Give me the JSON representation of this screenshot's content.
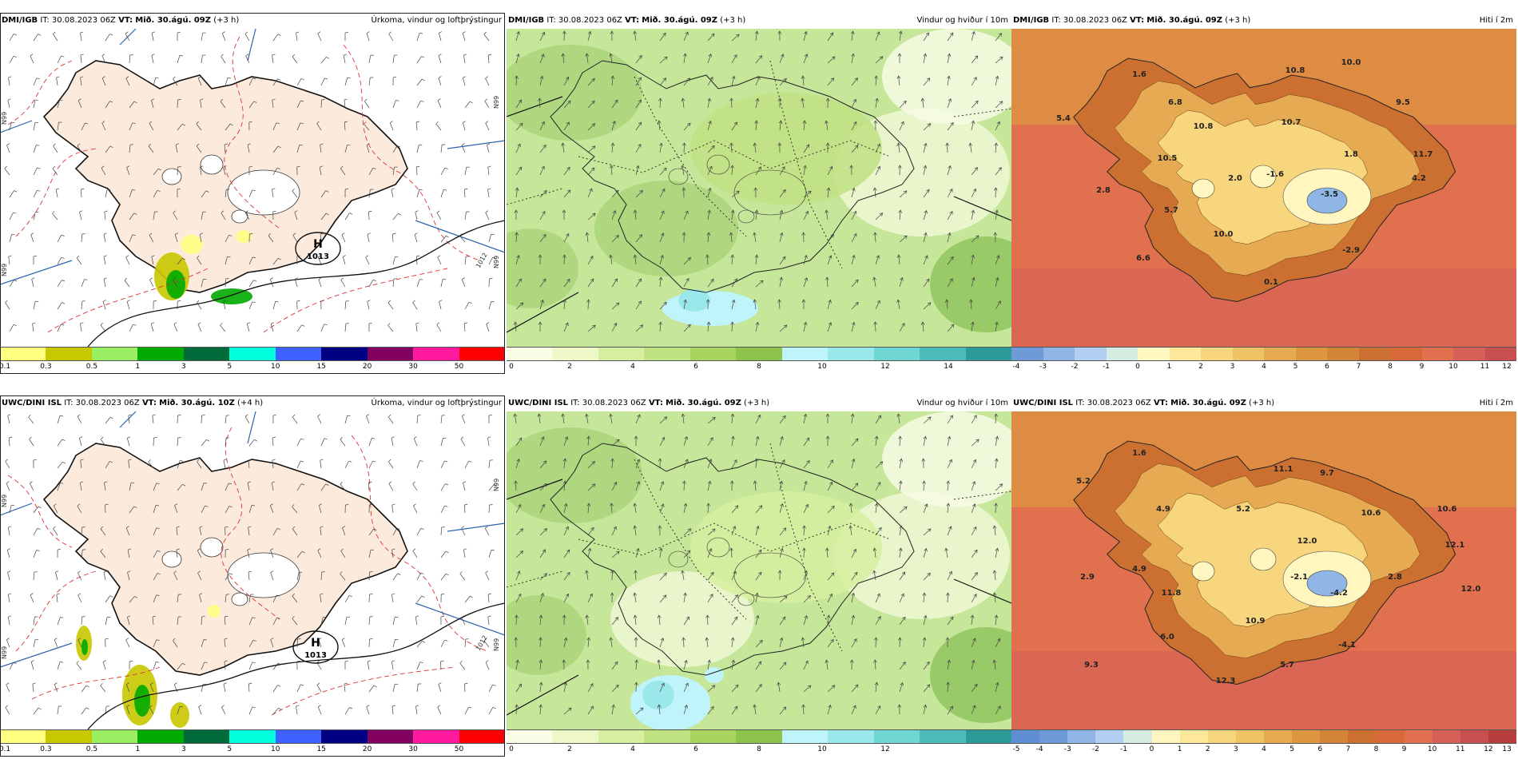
{
  "rows": [
    {
      "panels": [
        {
          "kind": "precip",
          "model": "DMI/IGB",
          "it_label": "IT:",
          "it_value": "30.08.2023 06Z",
          "vt_label": "VT:",
          "vt_value": "Mið. 30.ágú. 09Z",
          "lead": "(+3 h)",
          "product": "Úrkoma, vindur og loftþrýstingur",
          "pressure_high": {
            "symbol": "H",
            "value": "1013"
          },
          "isobar_label": "1012",
          "edge_labels": [
            "N99",
            "N99",
            "N99",
            "N99"
          ],
          "point_labels": [],
          "colorbar": {
            "colors": [
              "#ffff80",
              "#c8c800",
              "#9aee62",
              "#00aa00",
              "#006a3a",
              "#00ffdd",
              "#3d62ff",
              "#000082",
              "#820060",
              "#ff1aa0",
              "#ff0000"
            ],
            "ticks": [
              "0.1",
              "0.3",
              "0.5",
              "1",
              "3",
              "5",
              "10",
              "15",
              "20",
              "30",
              "50"
            ]
          }
        },
        {
          "kind": "wind",
          "model": "DMI/IGB",
          "it_label": "IT:",
          "it_value": "30.08.2023 06Z",
          "vt_label": "VT:",
          "vt_value": "Mið. 30.ágú. 09Z",
          "lead": "(+3 h)",
          "product": "Vindur og hviður í 10m",
          "point_labels": [],
          "colorbar": {
            "colors": [
              "#fbfde6",
              "#edf7c8",
              "#d6eea0",
              "#bfe380",
              "#a8d55e",
              "#8dc34a",
              "#bff4fb",
              "#9be8ea",
              "#70d6d3",
              "#4cbcba",
              "#2e9a97"
            ],
            "ticks": [
              "0",
              "2",
              "4",
              "6",
              "8",
              "10",
              "12",
              "14"
            ]
          }
        },
        {
          "kind": "temp",
          "model": "DMI/IGB",
          "it_label": "IT:",
          "it_value": "30.08.2023 06Z",
          "vt_label": "VT:",
          "vt_value": "Mið. 30.ágú. 09Z",
          "lead": "(+3 h)",
          "product": "Hiti í 2m",
          "point_labels": [
            "1.6",
            "10.8",
            "10.0",
            "5.4",
            "6.8",
            "9.5",
            "10.8",
            "10.7",
            "11.7",
            "10.5",
            "1.8",
            "2.8",
            "2.0",
            "-1.6",
            "4.2",
            "-3.5",
            "5.7",
            "10.0",
            "-2.9",
            "6.6",
            "0.1"
          ],
          "colorbar": {
            "colors": [
              "#6e9bd8",
              "#8fb6e6",
              "#b2cef0",
              "#d5ece0",
              "#fff6c0",
              "#fde89a",
              "#f8d67e",
              "#f0c266",
              "#e6ab52",
              "#dd9640",
              "#d48436",
              "#cc7032",
              "#d86a3a",
              "#e0704e",
              "#d66058",
              "#c84f4f"
            ],
            "ticks": [
              "-4",
              "-3",
              "-2",
              "-1",
              "0",
              "1",
              "2",
              "3",
              "4",
              "5",
              "6",
              "7",
              "8",
              "9",
              "10",
              "11",
              "12"
            ]
          }
        }
      ]
    },
    {
      "panels": [
        {
          "kind": "precip",
          "model": "UWC/DINI ISL",
          "it_label": "IT:",
          "it_value": "30.08.2023 06Z",
          "vt_label": "VT:",
          "vt_value": "Mið. 30.ágú. 10Z",
          "lead": "(+4 h)",
          "product": "Úrkoma, vindur og loftþrýstingur",
          "pressure_high": {
            "symbol": "H",
            "value": "1013"
          },
          "isobar_label": "1012",
          "edge_labels": [
            "N99",
            "N99",
            "N99",
            "N99"
          ],
          "point_labels": [],
          "colorbar": {
            "colors": [
              "#ffff80",
              "#c8c800",
              "#9aee62",
              "#00aa00",
              "#006a3a",
              "#00ffdd",
              "#3d62ff",
              "#000082",
              "#820060",
              "#ff1aa0",
              "#ff0000"
            ],
            "ticks": [
              "0.1",
              "0.3",
              "0.5",
              "1",
              "3",
              "5",
              "10",
              "15",
              "20",
              "30",
              "50"
            ]
          }
        },
        {
          "kind": "wind",
          "model": "UWC/DINI ISL",
          "it_label": "IT:",
          "it_value": "30.08.2023 06Z",
          "vt_label": "VT:",
          "vt_value": "Mið. 30.ágú. 09Z",
          "lead": "(+3 h)",
          "product": "Vindur og hviður í 10m",
          "point_labels": [],
          "colorbar": {
            "colors": [
              "#fbfde6",
              "#edf7c8",
              "#d6eea0",
              "#bfe380",
              "#a8d55e",
              "#8dc34a",
              "#bff4fb",
              "#9be8ea",
              "#70d6d3",
              "#4cbcba",
              "#2e9a97"
            ],
            "ticks": [
              "0",
              "2",
              "4",
              "6",
              "8",
              "10",
              "12"
            ]
          }
        },
        {
          "kind": "temp",
          "model": "UWC/DINI ISL",
          "it_label": "IT:",
          "it_value": "30.08.2023 06Z",
          "vt_label": "VT:",
          "vt_value": "Mið. 30.ágú. 09Z",
          "lead": "(+3 h)",
          "product": "Hiti í 2m",
          "point_labels": [
            "1.6",
            "5.2",
            "11.1",
            "9.7",
            "4.9",
            "5.2",
            "10.6",
            "10.6",
            "12.0",
            "12.1",
            "4.9",
            "2.9",
            "-2.1",
            "2.8",
            "11.8",
            "-4.2",
            "12.0",
            "10.9",
            "6.0",
            "-4.1",
            "9.3",
            "5.7",
            "12.3"
          ],
          "colorbar": {
            "colors": [
              "#5f8fd2",
              "#6e9bd8",
              "#8fb6e6",
              "#b2cef0",
              "#d5ece0",
              "#fff6c0",
              "#fde89a",
              "#f8d67e",
              "#f0c266",
              "#e6ab52",
              "#dd9640",
              "#d48436",
              "#cc7032",
              "#d86a3a",
              "#e0704e",
              "#d66058",
              "#c84f4f",
              "#b83e3e"
            ],
            "ticks": [
              "-5",
              "-4",
              "-3",
              "-2",
              "-1",
              "0",
              "1",
              "2",
              "3",
              "4",
              "5",
              "6",
              "7",
              "8",
              "9",
              "10",
              "11",
              "12",
              "13"
            ]
          }
        }
      ]
    }
  ]
}
